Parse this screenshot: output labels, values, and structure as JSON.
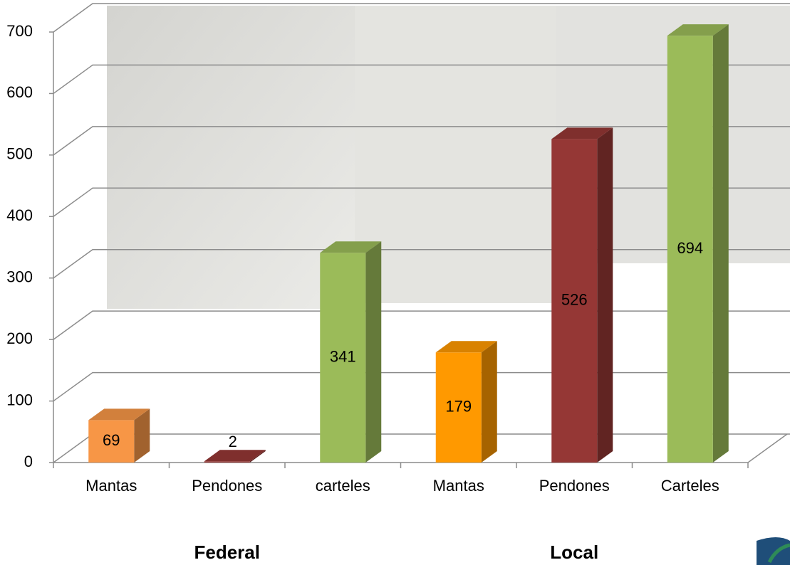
{
  "chart_data": {
    "type": "bar3d",
    "categories": [
      "Mantas",
      "Pendones",
      "carteles",
      "Mantas",
      "Pendones",
      "Carteles"
    ],
    "values": [
      69,
      2,
      341,
      179,
      526,
      694
    ],
    "colors": [
      "#f79646",
      "#953735",
      "#9bbb59",
      "#ff9900",
      "#953735",
      "#9bbb59"
    ],
    "groups": [
      "Federal",
      "Local"
    ],
    "ylim": [
      0,
      700
    ],
    "yticks": [
      0,
      100,
      200,
      300,
      400,
      500,
      600,
      700
    ],
    "grid": true
  }
}
